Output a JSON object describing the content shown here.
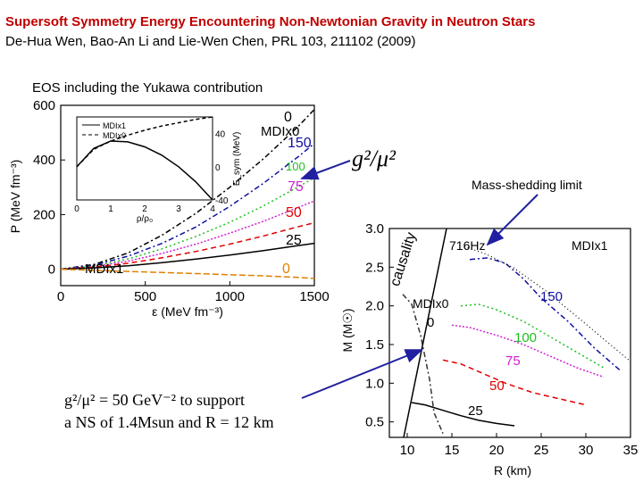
{
  "slide": {
    "title": "Supersoft Symmetry Energy Encountering Non-Newtonian Gravity in Neutron Stars",
    "citation": "De-Hua Wen, Bao-An Li and Lie-Wen Chen, PRL 103, 211102 (2009)",
    "eos_label": "EOS including the Yukawa contribution",
    "mass_shedding_label": "Mass-shedding limit",
    "coupling_label": "g²/μ²",
    "support_line1": "g²/μ² = 50 GeV⁻² to support",
    "support_line2": "a NS of 1.4Msun and R = 12 km"
  },
  "colors": {
    "title": "#c00000",
    "s0": "#000000",
    "s25": "#000000",
    "s50": "#e00000",
    "s75": "#d020d0",
    "s100": "#20c020",
    "s150": "#1010a0",
    "mdix0": "#333333",
    "orange": "#e08000",
    "arrow": "#2020a0"
  },
  "chart_data": [
    {
      "type": "line",
      "title": "",
      "xlabel": "ε (MeV fm⁻³)",
      "ylabel": "P (MeV fm⁻³)",
      "xlim": [
        0,
        1500
      ],
      "ylim": [
        -60,
        600
      ],
      "xticks": [
        0,
        500,
        1000,
        1500
      ],
      "yticks": [
        0,
        200,
        400,
        600
      ],
      "model_labels": [
        "MDIx0",
        "MDIx1"
      ],
      "curve_labels": [
        "0",
        "150",
        "100",
        "75",
        "50",
        "25",
        "0"
      ],
      "series": [
        {
          "name": "0",
          "color_key": "s0",
          "x": [
            0,
            200,
            400,
            600,
            800,
            1000,
            1200,
            1400,
            1500
          ],
          "y": [
            0,
            18,
            60,
            125,
            205,
            300,
            405,
            520,
            585
          ]
        },
        {
          "name": "150",
          "color_key": "s150",
          "x": [
            0,
            200,
            400,
            600,
            800,
            1000,
            1200,
            1400,
            1500
          ],
          "y": [
            0,
            15,
            48,
            95,
            155,
            230,
            315,
            410,
            460
          ]
        },
        {
          "name": "100",
          "color_key": "s100",
          "x": [
            0,
            200,
            400,
            600,
            800,
            1000,
            1200,
            1400,
            1500
          ],
          "y": [
            0,
            12,
            38,
            75,
            120,
            172,
            232,
            300,
            335
          ]
        },
        {
          "name": "75",
          "color_key": "s75",
          "x": [
            0,
            200,
            400,
            600,
            800,
            1000,
            1200,
            1400,
            1500
          ],
          "y": [
            0,
            10,
            30,
            58,
            92,
            132,
            176,
            225,
            250
          ]
        },
        {
          "name": "50",
          "color_key": "s50",
          "x": [
            0,
            200,
            400,
            600,
            800,
            1000,
            1200,
            1400,
            1500
          ],
          "y": [
            0,
            8,
            22,
            42,
            65,
            92,
            122,
            155,
            170
          ]
        },
        {
          "name": "25",
          "color_key": "s25",
          "x": [
            0,
            200,
            400,
            600,
            800,
            1000,
            1200,
            1400,
            1500
          ],
          "y": [
            0,
            5,
            13,
            24,
            37,
            52,
            68,
            86,
            95
          ]
        },
        {
          "name": "0",
          "color_key": "orange",
          "x": [
            0,
            200,
            400,
            600,
            800,
            1000,
            1200,
            1400,
            1500
          ],
          "y": [
            0,
            -4,
            -8,
            -12,
            -16,
            -20,
            -24,
            -30,
            -34
          ]
        }
      ]
    },
    {
      "type": "line",
      "title": "",
      "xlabel": "ρ/ρ₀",
      "ylabel": "E_sym (MeV)",
      "xlim": [
        0,
        4
      ],
      "ylim": [
        -40,
        60
      ],
      "xticks": [
        0,
        1,
        2,
        3,
        4
      ],
      "yticks": [
        -40,
        0,
        40
      ],
      "legend": [
        "MDIx1",
        "MDIx0"
      ],
      "series": [
        {
          "name": "MDIx1",
          "x": [
            0,
            0.5,
            1,
            1.5,
            2,
            2.5,
            3,
            3.5,
            4
          ],
          "y": [
            0,
            22,
            31,
            30,
            24,
            14,
            0,
            -18,
            -40
          ]
        },
        {
          "name": "MDIx0",
          "x": [
            0,
            0.5,
            1,
            1.5,
            2,
            2.5,
            3,
            3.5,
            4
          ],
          "y": [
            0,
            21,
            31,
            38,
            44,
            49,
            53,
            57,
            60
          ]
        }
      ]
    },
    {
      "type": "line",
      "title": "",
      "xlabel": "R (km)",
      "ylabel": "M (M☉)",
      "xlim": [
        8,
        35
      ],
      "ylim": [
        0.3,
        3.0
      ],
      "xticks": [
        10,
        15,
        20,
        25,
        30,
        35
      ],
      "yticks": [
        0.5,
        1.0,
        1.5,
        2.0,
        2.5,
        3.0
      ],
      "annotations": [
        "causality",
        "716Hz",
        "MDIx0",
        "MDIx1"
      ],
      "curve_labels": [
        "0",
        "150",
        "100",
        "75",
        "50",
        "25"
      ],
      "series": [
        {
          "name": "0",
          "color_key": "mdix0",
          "x": [
            9.5,
            10.5,
            11.5,
            12.5,
            13,
            14
          ],
          "y": [
            2.15,
            2.02,
            1.62,
            1.05,
            0.62,
            0.35
          ]
        },
        {
          "name": "150",
          "color_key": "s150",
          "x": [
            17,
            19,
            21,
            23,
            25,
            28,
            31,
            34
          ],
          "y": [
            2.6,
            2.62,
            2.55,
            2.35,
            2.1,
            1.8,
            1.45,
            1.15
          ]
        },
        {
          "name": "100",
          "color_key": "s100",
          "x": [
            16,
            18,
            20,
            23,
            26,
            29,
            32
          ],
          "y": [
            2.0,
            2.02,
            1.95,
            1.8,
            1.6,
            1.4,
            1.2
          ]
        },
        {
          "name": "75",
          "color_key": "s75",
          "x": [
            15,
            17,
            20,
            23,
            26,
            29,
            32
          ],
          "y": [
            1.75,
            1.72,
            1.62,
            1.5,
            1.35,
            1.2,
            1.08
          ]
        },
        {
          "name": "50",
          "color_key": "s50",
          "x": [
            14,
            16,
            18,
            21,
            24,
            27,
            30
          ],
          "y": [
            1.3,
            1.25,
            1.15,
            1.0,
            0.88,
            0.8,
            0.72
          ]
        },
        {
          "name": "25",
          "color_key": "s25",
          "x": [
            10.5,
            12,
            14,
            16,
            18,
            20,
            22
          ],
          "y": [
            0.75,
            0.72,
            0.65,
            0.58,
            0.52,
            0.48,
            0.45
          ]
        }
      ]
    }
  ]
}
